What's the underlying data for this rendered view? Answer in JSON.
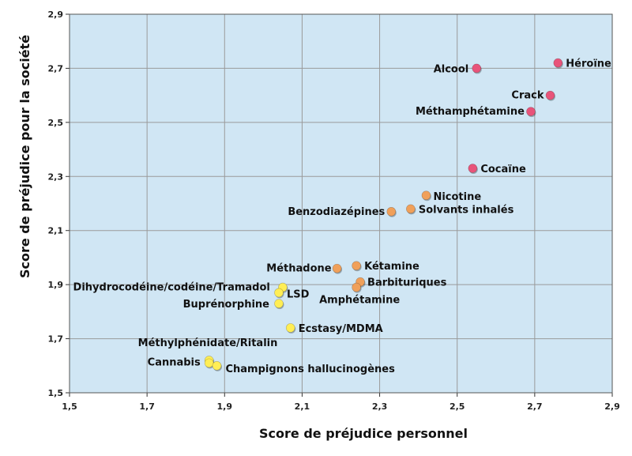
{
  "chart_data": {
    "type": "scatter",
    "xlabel": "Score de préjudice personnel",
    "ylabel": "Score de préjudice pour la société",
    "xlim": [
      1.5,
      2.9
    ],
    "ylim": [
      1.5,
      2.9
    ],
    "xticks": [
      "1,5",
      "1,7",
      "1,9",
      "2,1",
      "2,3",
      "2,5",
      "2,7",
      "2,9"
    ],
    "yticks": [
      "1,5",
      "1,7",
      "1,9",
      "2,1",
      "2,3",
      "2,5",
      "2,7",
      "2,9"
    ],
    "grid": true,
    "plot_background": "#d0e6f4",
    "grid_color": "#9a9a9a",
    "colors": {
      "high": "#e8547a",
      "medium": "#f0a05a",
      "low": "#ffee55"
    },
    "points": [
      {
        "label": "Héroïne",
        "x": 2.76,
        "y": 2.72,
        "group": "high"
      },
      {
        "label": "Alcool",
        "x": 2.55,
        "y": 2.7,
        "group": "high"
      },
      {
        "label": "Crack",
        "x": 2.74,
        "y": 2.6,
        "group": "high"
      },
      {
        "label": "Méthamphétamine",
        "x": 2.69,
        "y": 2.54,
        "group": "high"
      },
      {
        "label": "Cocaïne",
        "x": 2.54,
        "y": 2.33,
        "group": "high"
      },
      {
        "label": "Nicotine",
        "x": 2.42,
        "y": 2.23,
        "group": "medium"
      },
      {
        "label": "Solvants inhalés",
        "x": 2.38,
        "y": 2.18,
        "group": "medium"
      },
      {
        "label": "Benzodiazépines",
        "x": 2.33,
        "y": 2.17,
        "group": "medium"
      },
      {
        "label": "Kétamine",
        "x": 2.24,
        "y": 1.97,
        "group": "medium"
      },
      {
        "label": "Méthadone",
        "x": 2.19,
        "y": 1.96,
        "group": "medium"
      },
      {
        "label": "Barbituriques",
        "x": 2.25,
        "y": 1.91,
        "group": "medium"
      },
      {
        "label": "Amphétamine",
        "x": 2.24,
        "y": 1.89,
        "group": "medium"
      },
      {
        "label": "Dihydrocodéine/codéine/Tramadol",
        "x": 2.05,
        "y": 1.89,
        "group": "low"
      },
      {
        "label": "LSD",
        "x": 2.04,
        "y": 1.87,
        "group": "low"
      },
      {
        "label": "Buprénorphine",
        "x": 2.04,
        "y": 1.83,
        "group": "low"
      },
      {
        "label": "Ecstasy/MDMA",
        "x": 2.07,
        "y": 1.74,
        "group": "low"
      },
      {
        "label": "Méthylphénidate/Ritalin",
        "x": 1.86,
        "y": 1.62,
        "group": "low"
      },
      {
        "label": "Cannabis",
        "x": 1.86,
        "y": 1.61,
        "group": "low"
      },
      {
        "label": "Champignons hallucinogènes",
        "x": 1.88,
        "y": 1.6,
        "group": "low"
      }
    ]
  }
}
